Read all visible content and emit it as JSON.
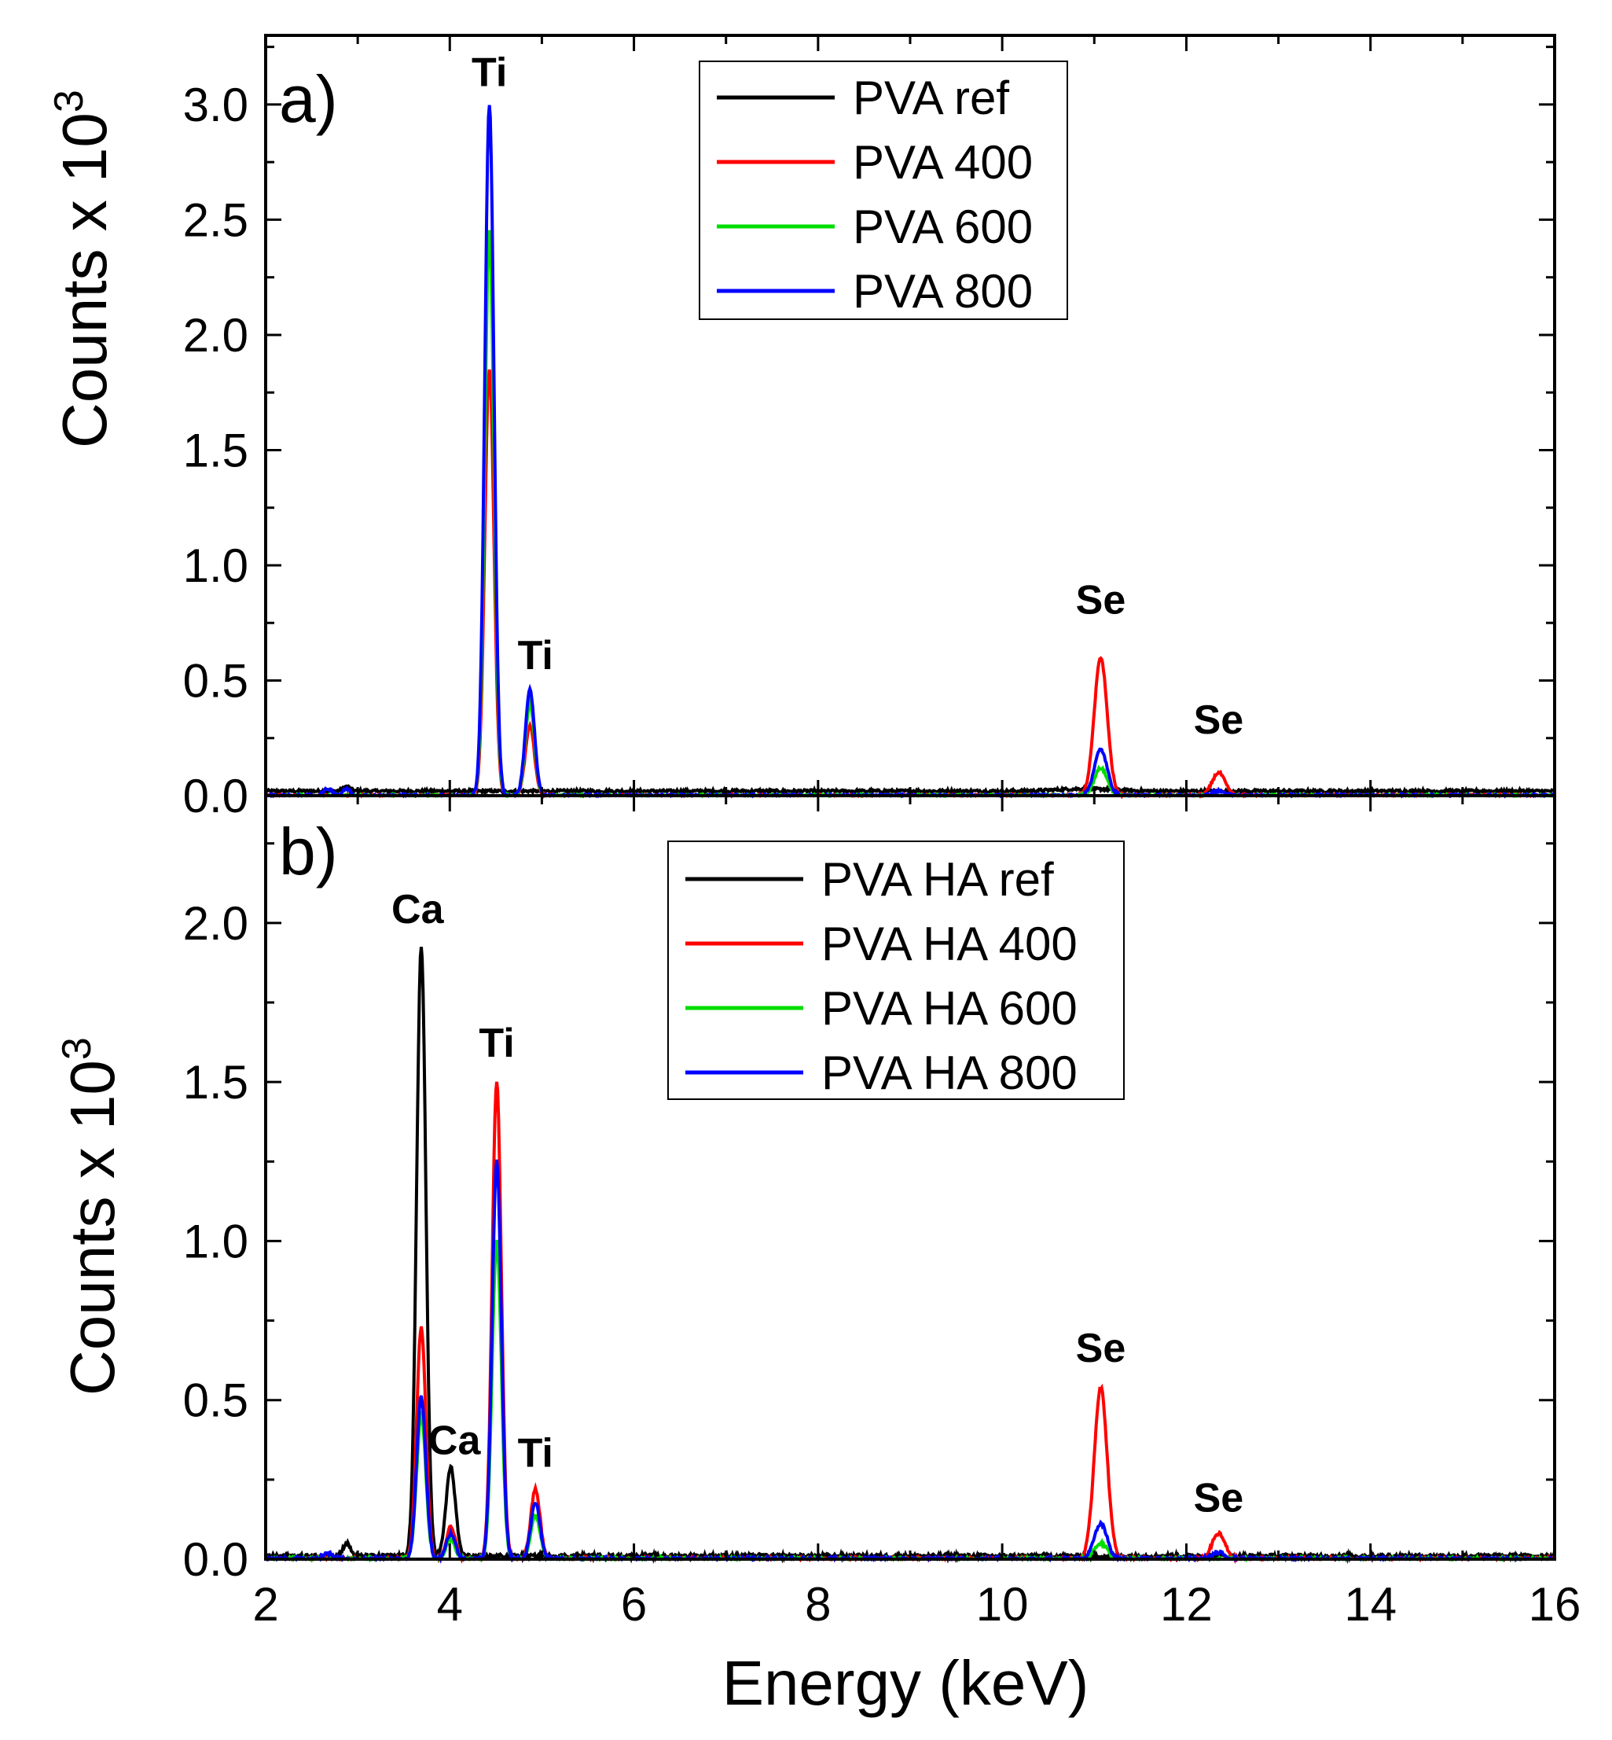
{
  "chart_data": [
    {
      "type": "line",
      "panel_label": "a)",
      "xlabel": "Energy (keV)",
      "ylabel_main": "Counts x 10",
      "ylabel_exponent": "3",
      "xlim": [
        2,
        16
      ],
      "ylim": [
        0,
        3.3
      ],
      "xticks": [
        2,
        4,
        6,
        8,
        10,
        12,
        14,
        16
      ],
      "yticks": [
        0.0,
        0.5,
        1.0,
        1.5,
        2.0,
        2.5,
        3.0
      ],
      "ytick_labels": [
        "0.0",
        "0.5",
        "1.0",
        "1.5",
        "2.0",
        "2.5",
        "3.0"
      ],
      "legend_position": "top-center",
      "series": [
        {
          "name": "PVA ref",
          "color": "#000000",
          "baseline": 0.02,
          "peaks": [
            [
              2.88,
              0.02,
              0.04
            ],
            [
              10.9,
              0.01,
              0.3
            ]
          ]
        },
        {
          "name": "PVA 400",
          "color": "#ff0000",
          "baseline": 0.0,
          "peaks": [
            [
              4.43,
              1.85,
              0.05
            ],
            [
              4.87,
              0.3,
              0.05
            ],
            [
              11.07,
              0.6,
              0.07
            ],
            [
              12.35,
              0.1,
              0.07
            ]
          ]
        },
        {
          "name": "PVA 600",
          "color": "#00dd00",
          "baseline": 0.0,
          "peaks": [
            [
              4.43,
              2.45,
              0.05
            ],
            [
              4.87,
              0.4,
              0.05
            ],
            [
              11.07,
              0.12,
              0.07
            ]
          ]
        },
        {
          "name": "PVA 800",
          "color": "#0000ff",
          "baseline": 0.0,
          "peaks": [
            [
              2.68,
              0.03,
              0.05
            ],
            [
              2.88,
              0.03,
              0.04
            ],
            [
              4.43,
              3.0,
              0.05
            ],
            [
              4.87,
              0.46,
              0.05
            ],
            [
              11.07,
              0.2,
              0.07
            ],
            [
              12.35,
              0.02,
              0.07
            ]
          ]
        }
      ],
      "annotations": [
        {
          "text": "Ti",
          "x": 4.43,
          "y": 3.08
        },
        {
          "text": "Ti",
          "x": 4.93,
          "y": 0.55
        },
        {
          "text": "Se",
          "x": 11.07,
          "y": 0.79
        },
        {
          "text": "Se",
          "x": 12.35,
          "y": 0.27
        }
      ]
    },
    {
      "type": "line",
      "panel_label": "b)",
      "xlabel": "Energy (keV)",
      "ylabel_main": "Counts x 10",
      "ylabel_exponent": "3",
      "xlim": [
        2,
        16
      ],
      "ylim": [
        0,
        2.4
      ],
      "xticks": [
        2,
        4,
        6,
        8,
        10,
        12,
        14,
        16
      ],
      "xtick_labels": [
        "2",
        "4",
        "6",
        "8",
        "10",
        "12",
        "14",
        "16"
      ],
      "yticks": [
        0.0,
        0.5,
        1.0,
        1.5,
        2.0
      ],
      "ytick_labels": [
        "0.0",
        "0.5",
        "1.0",
        "1.5",
        "2.0"
      ],
      "legend_position": "top-center",
      "series": [
        {
          "name": "PVA HA ref",
          "color": "#000000",
          "baseline": 0.01,
          "peaks": [
            [
              2.88,
              0.04,
              0.04
            ],
            [
              3.69,
              1.92,
              0.05
            ],
            [
              4.01,
              0.28,
              0.05
            ]
          ]
        },
        {
          "name": "PVA HA 400",
          "color": "#ff0000",
          "baseline": 0.0,
          "peaks": [
            [
              3.69,
              0.73,
              0.05
            ],
            [
              4.01,
              0.1,
              0.05
            ],
            [
              4.51,
              1.5,
              0.05
            ],
            [
              4.93,
              0.22,
              0.05
            ],
            [
              11.07,
              0.54,
              0.07
            ],
            [
              12.35,
              0.08,
              0.07
            ]
          ]
        },
        {
          "name": "PVA HA 600",
          "color": "#00dd00",
          "baseline": 0.0,
          "peaks": [
            [
              3.69,
              0.45,
              0.05
            ],
            [
              4.01,
              0.06,
              0.05
            ],
            [
              4.51,
              1.0,
              0.05
            ],
            [
              4.93,
              0.14,
              0.05
            ],
            [
              11.07,
              0.05,
              0.07
            ]
          ]
        },
        {
          "name": "PVA HA 800",
          "color": "#0000ff",
          "baseline": 0.0,
          "peaks": [
            [
              2.68,
              0.02,
              0.05
            ],
            [
              3.69,
              0.51,
              0.05
            ],
            [
              4.01,
              0.08,
              0.05
            ],
            [
              4.51,
              1.25,
              0.05
            ],
            [
              4.93,
              0.18,
              0.05
            ],
            [
              11.07,
              0.11,
              0.07
            ],
            [
              12.35,
              0.02,
              0.07
            ]
          ]
        }
      ],
      "annotations": [
        {
          "text": "Ca",
          "x": 3.65,
          "y": 2.0
        },
        {
          "text": "Ca",
          "x": 4.05,
          "y": 0.33
        },
        {
          "text": "Ti",
          "x": 4.51,
          "y": 1.58
        },
        {
          "text": "Ti",
          "x": 4.93,
          "y": 0.29
        },
        {
          "text": "Se",
          "x": 11.07,
          "y": 0.62
        },
        {
          "text": "Se",
          "x": 12.35,
          "y": 0.15
        }
      ]
    }
  ]
}
